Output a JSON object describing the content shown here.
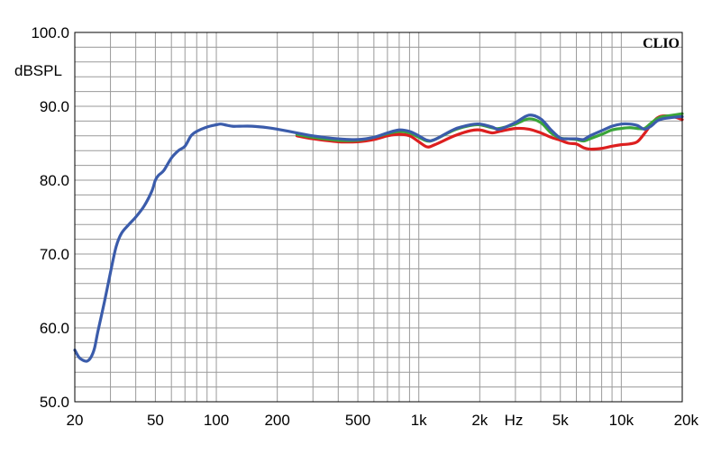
{
  "chart_data": {
    "type": "line",
    "brand": "CLIO",
    "ylabel": "dBSPL",
    "xlabel": "Hz",
    "xscale": "log",
    "xlim": [
      20,
      20000
    ],
    "ylim": [
      50,
      100
    ],
    "grid": true,
    "x_ticks": [
      {
        "value": 20,
        "label": "20"
      },
      {
        "value": 50,
        "label": "50"
      },
      {
        "value": 100,
        "label": "100"
      },
      {
        "value": 200,
        "label": "200"
      },
      {
        "value": 500,
        "label": "500"
      },
      {
        "value": 1000,
        "label": "1k"
      },
      {
        "value": 2000,
        "label": "2k"
      },
      {
        "value": 5000,
        "label": "5k"
      },
      {
        "value": 10000,
        "label": "10k"
      },
      {
        "value": 20000,
        "label": "20k"
      }
    ],
    "y_ticks": [
      {
        "value": 100,
        "label": "100.0"
      },
      {
        "value": 90,
        "label": "90.0"
      },
      {
        "value": 80,
        "label": "80.0"
      },
      {
        "value": 70,
        "label": "70.0"
      },
      {
        "value": 60,
        "label": "60.0"
      },
      {
        "value": 50,
        "label": "50.0"
      }
    ],
    "series": [
      {
        "color": "#dd1f1f",
        "points": [
          [
            250,
            86.0
          ],
          [
            300,
            85.6
          ],
          [
            400,
            85.2
          ],
          [
            500,
            85.2
          ],
          [
            600,
            85.5
          ],
          [
            700,
            86.0
          ],
          [
            800,
            86.2
          ],
          [
            900,
            86.0
          ],
          [
            1000,
            85.2
          ],
          [
            1100,
            84.5
          ],
          [
            1200,
            84.8
          ],
          [
            1500,
            86.0
          ],
          [
            1800,
            86.7
          ],
          [
            2000,
            86.8
          ],
          [
            2300,
            86.4
          ],
          [
            2500,
            86.6
          ],
          [
            3000,
            87.0
          ],
          [
            3500,
            86.9
          ],
          [
            4000,
            86.4
          ],
          [
            4500,
            85.8
          ],
          [
            5000,
            85.4
          ],
          [
            5500,
            85.0
          ],
          [
            6000,
            84.9
          ],
          [
            6500,
            84.4
          ],
          [
            7000,
            84.2
          ],
          [
            8000,
            84.3
          ],
          [
            9000,
            84.6
          ],
          [
            10000,
            84.8
          ],
          [
            11000,
            84.9
          ],
          [
            12000,
            85.2
          ],
          [
            13000,
            86.3
          ],
          [
            14000,
            87.5
          ],
          [
            15000,
            88.4
          ],
          [
            16000,
            88.7
          ],
          [
            18000,
            88.6
          ],
          [
            20000,
            88.2
          ]
        ]
      },
      {
        "color": "#3aa539",
        "points": [
          [
            250,
            86.2
          ],
          [
            300,
            85.8
          ],
          [
            400,
            85.4
          ],
          [
            500,
            85.4
          ],
          [
            600,
            85.8
          ],
          [
            700,
            86.3
          ],
          [
            800,
            86.6
          ],
          [
            900,
            86.4
          ],
          [
            1000,
            85.8
          ],
          [
            1100,
            85.3
          ],
          [
            1200,
            85.5
          ],
          [
            1500,
            86.8
          ],
          [
            1800,
            87.4
          ],
          [
            2000,
            87.5
          ],
          [
            2300,
            87.1
          ],
          [
            2500,
            87.0
          ],
          [
            3000,
            87.6
          ],
          [
            3500,
            88.3
          ],
          [
            4000,
            87.8
          ],
          [
            4500,
            86.4
          ],
          [
            5000,
            85.7
          ],
          [
            5500,
            85.6
          ],
          [
            6000,
            85.5
          ],
          [
            6500,
            85.3
          ],
          [
            7000,
            85.6
          ],
          [
            8000,
            86.2
          ],
          [
            9000,
            86.8
          ],
          [
            10000,
            87.0
          ],
          [
            11000,
            87.1
          ],
          [
            12000,
            87.0
          ],
          [
            13000,
            87.0
          ],
          [
            14000,
            87.7
          ],
          [
            15000,
            88.3
          ],
          [
            16000,
            88.6
          ],
          [
            18000,
            88.8
          ],
          [
            20000,
            89.0
          ]
        ]
      },
      {
        "color": "#3b5cab",
        "points": [
          [
            20,
            57.0
          ],
          [
            21,
            56.0
          ],
          [
            22,
            55.6
          ],
          [
            23,
            55.5
          ],
          [
            24,
            56.0
          ],
          [
            25,
            57.2
          ],
          [
            26,
            59.5
          ],
          [
            28,
            63.5
          ],
          [
            30,
            67.5
          ],
          [
            32,
            71.0
          ],
          [
            34,
            72.8
          ],
          [
            37,
            74.0
          ],
          [
            40,
            75.0
          ],
          [
            44,
            76.5
          ],
          [
            48,
            78.5
          ],
          [
            50,
            80.0
          ],
          [
            52,
            80.7
          ],
          [
            55,
            81.3
          ],
          [
            60,
            83.0
          ],
          [
            65,
            84.0
          ],
          [
            70,
            84.6
          ],
          [
            75,
            86.0
          ],
          [
            80,
            86.6
          ],
          [
            90,
            87.2
          ],
          [
            100,
            87.5
          ],
          [
            105,
            87.6
          ],
          [
            110,
            87.5
          ],
          [
            120,
            87.3
          ],
          [
            130,
            87.3
          ],
          [
            150,
            87.3
          ],
          [
            180,
            87.1
          ],
          [
            200,
            86.9
          ],
          [
            250,
            86.4
          ],
          [
            300,
            86.0
          ],
          [
            400,
            85.6
          ],
          [
            500,
            85.5
          ],
          [
            600,
            85.8
          ],
          [
            700,
            86.4
          ],
          [
            800,
            86.8
          ],
          [
            900,
            86.6
          ],
          [
            1000,
            86.0
          ],
          [
            1100,
            85.4
          ],
          [
            1200,
            85.5
          ],
          [
            1500,
            86.9
          ],
          [
            1800,
            87.5
          ],
          [
            2000,
            87.6
          ],
          [
            2300,
            87.2
          ],
          [
            2500,
            86.9
          ],
          [
            3000,
            87.8
          ],
          [
            3500,
            88.8
          ],
          [
            4000,
            88.3
          ],
          [
            4500,
            86.8
          ],
          [
            5000,
            85.7
          ],
          [
            5500,
            85.6
          ],
          [
            6000,
            85.6
          ],
          [
            6500,
            85.5
          ],
          [
            7000,
            86.0
          ],
          [
            8000,
            86.7
          ],
          [
            9000,
            87.3
          ],
          [
            10000,
            87.6
          ],
          [
            11000,
            87.6
          ],
          [
            12000,
            87.4
          ],
          [
            13000,
            86.9
          ],
          [
            14000,
            87.3
          ],
          [
            15000,
            88.0
          ],
          [
            16000,
            88.3
          ],
          [
            18000,
            88.5
          ],
          [
            20000,
            88.6
          ]
        ]
      }
    ]
  }
}
